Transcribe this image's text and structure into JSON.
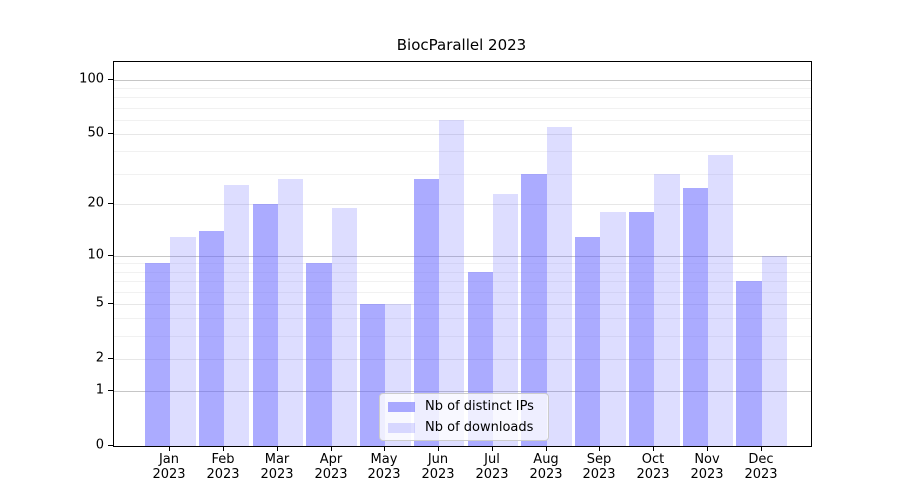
{
  "title": "BiocParallel 2023",
  "colors": {
    "ips_bar": "rgba(102,102,255,0.55)",
    "downloads_bar": "rgba(102,102,255,0.22)",
    "grid_decade": "#c6c6c6",
    "grid_major": "#e7e7e7",
    "grid_minor": "#f1f1f1",
    "axis": "#000000"
  },
  "legend": {
    "items": [
      {
        "label": "Nb of distinct IPs",
        "series": "ips"
      },
      {
        "label": "Nb of downloads",
        "series": "downloads"
      }
    ]
  },
  "axes": {
    "y_tick_labels": [
      "0",
      "1",
      "2",
      "5",
      "10",
      "20",
      "50",
      "100"
    ],
    "x_tick_months": [
      "Jan",
      "Feb",
      "Mar",
      "Apr",
      "May",
      "Jun",
      "Jul",
      "Aug",
      "Sep",
      "Oct",
      "Nov",
      "Dec"
    ],
    "x_tick_year": "2023"
  },
  "chart_data": {
    "type": "bar",
    "title": "BiocParallel 2023",
    "categories": [
      "Jan 2023",
      "Feb 2023",
      "Mar 2023",
      "Apr 2023",
      "May 2023",
      "Jun 2023",
      "Jul 2023",
      "Aug 2023",
      "Sep 2023",
      "Oct 2023",
      "Nov 2023",
      "Dec 2023"
    ],
    "series": [
      {
        "name": "Nb of distinct IPs",
        "values": [
          9,
          14,
          20,
          9,
          5,
          28,
          8,
          30,
          13,
          18,
          25,
          7
        ]
      },
      {
        "name": "Nb of downloads",
        "values": [
          13,
          26,
          28,
          19,
          5,
          60,
          23,
          55,
          18,
          30,
          38,
          10
        ]
      }
    ],
    "y_scale": "log1p",
    "y_ticks": [
      0,
      1,
      2,
      5,
      10,
      20,
      50,
      100
    ],
    "y_decade_gridlines": [
      1,
      10,
      100
    ],
    "y_major_gridlines": [
      2,
      5,
      20,
      50
    ],
    "y_minor_gridlines": [
      3,
      4,
      6,
      7,
      8,
      9,
      30,
      40,
      60,
      70,
      80,
      90
    ],
    "ylim_top": 125,
    "grid": "horizontal",
    "legend_position": "inside-bottom-center"
  }
}
